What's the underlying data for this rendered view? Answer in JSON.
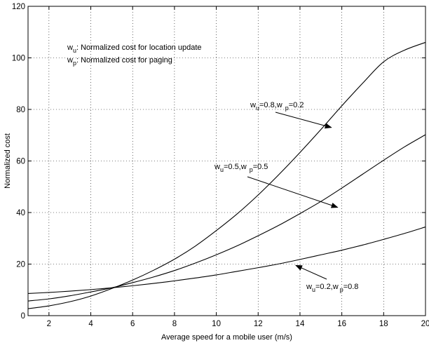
{
  "chart_data": {
    "type": "line",
    "xlabel": "Average speed for a mobile user (m/s)",
    "ylabel": "Normalized cost",
    "xlim": [
      1,
      20
    ],
    "ylim": [
      0,
      120
    ],
    "xticks": [
      2,
      4,
      6,
      8,
      10,
      12,
      14,
      16,
      18,
      20
    ],
    "yticks": [
      0,
      20,
      40,
      60,
      80,
      100,
      120
    ],
    "xtick_labels": [
      "2",
      "4",
      "6",
      "8",
      "10",
      "12",
      "14",
      "16",
      "18",
      "20"
    ],
    "ytick_labels": [
      "0",
      "20",
      "40",
      "60",
      "80",
      "100",
      "120"
    ],
    "grid": true,
    "series": [
      {
        "x": [
          1,
          2,
          3,
          4,
          5,
          6,
          7,
          8,
          9,
          10,
          11,
          12,
          13,
          14,
          15,
          16,
          17,
          18,
          19,
          20
        ],
        "values": [
          2.7,
          3.8,
          5.4,
          7.6,
          10.5,
          13.8,
          17.6,
          21.9,
          27,
          33,
          39.5,
          46.8,
          54.8,
          63.3,
          72.2,
          81.4,
          90.2,
          98.5,
          103,
          106
        ]
      },
      {
        "x": [
          1,
          2,
          3,
          4,
          5,
          6,
          7,
          8,
          9,
          10,
          11,
          12,
          13,
          14,
          15,
          16,
          17,
          18,
          19,
          20
        ],
        "values": [
          5.7,
          6.5,
          7.7,
          9.2,
          10.8,
          12.8,
          15.0,
          17.5,
          20.4,
          23.6,
          27.1,
          31.0,
          35.1,
          39.6,
          44.3,
          49.5,
          54.9,
          60.3,
          65.5,
          70.2
        ]
      },
      {
        "x": [
          1,
          2,
          3,
          4,
          5,
          6,
          7,
          8,
          9,
          10,
          11,
          12,
          13,
          14,
          15,
          16,
          17,
          18,
          19,
          20
        ],
        "values": [
          8.6,
          9.0,
          9.5,
          10.1,
          10.8,
          11.6,
          12.5,
          13.5,
          14.6,
          15.8,
          17.2,
          18.6,
          20.1,
          21.8,
          23.6,
          25.4,
          27.4,
          29.6,
          31.9,
          34.4
        ]
      }
    ],
    "annotations": {
      "legend_line1": {
        "var": "w",
        "sub": "u",
        "text": ": Normalized cost for location update"
      },
      "legend_line2": {
        "var": "w",
        "sub": "p",
        "text": ": Normalized cost for paging"
      },
      "label_a": {
        "w1": "w",
        "s1": "u",
        "t1": "=0.8,",
        "w2": "w",
        "s2": "p",
        "t2": "=0.2",
        "arrow_to": [
          15.5,
          73
        ]
      },
      "label_b": {
        "w1": "w",
        "s1": "u",
        "t1": "=0.5,w",
        "s2": "p",
        "t2": "=0.5",
        "arrow_to": [
          15.8,
          42
        ]
      },
      "label_c": {
        "w1": "w",
        "s1": "u",
        "t1": "=0.2,w",
        "s2": "p",
        "t2": "=0.8",
        "arrow_to": [
          13.8,
          19.5
        ]
      }
    }
  }
}
